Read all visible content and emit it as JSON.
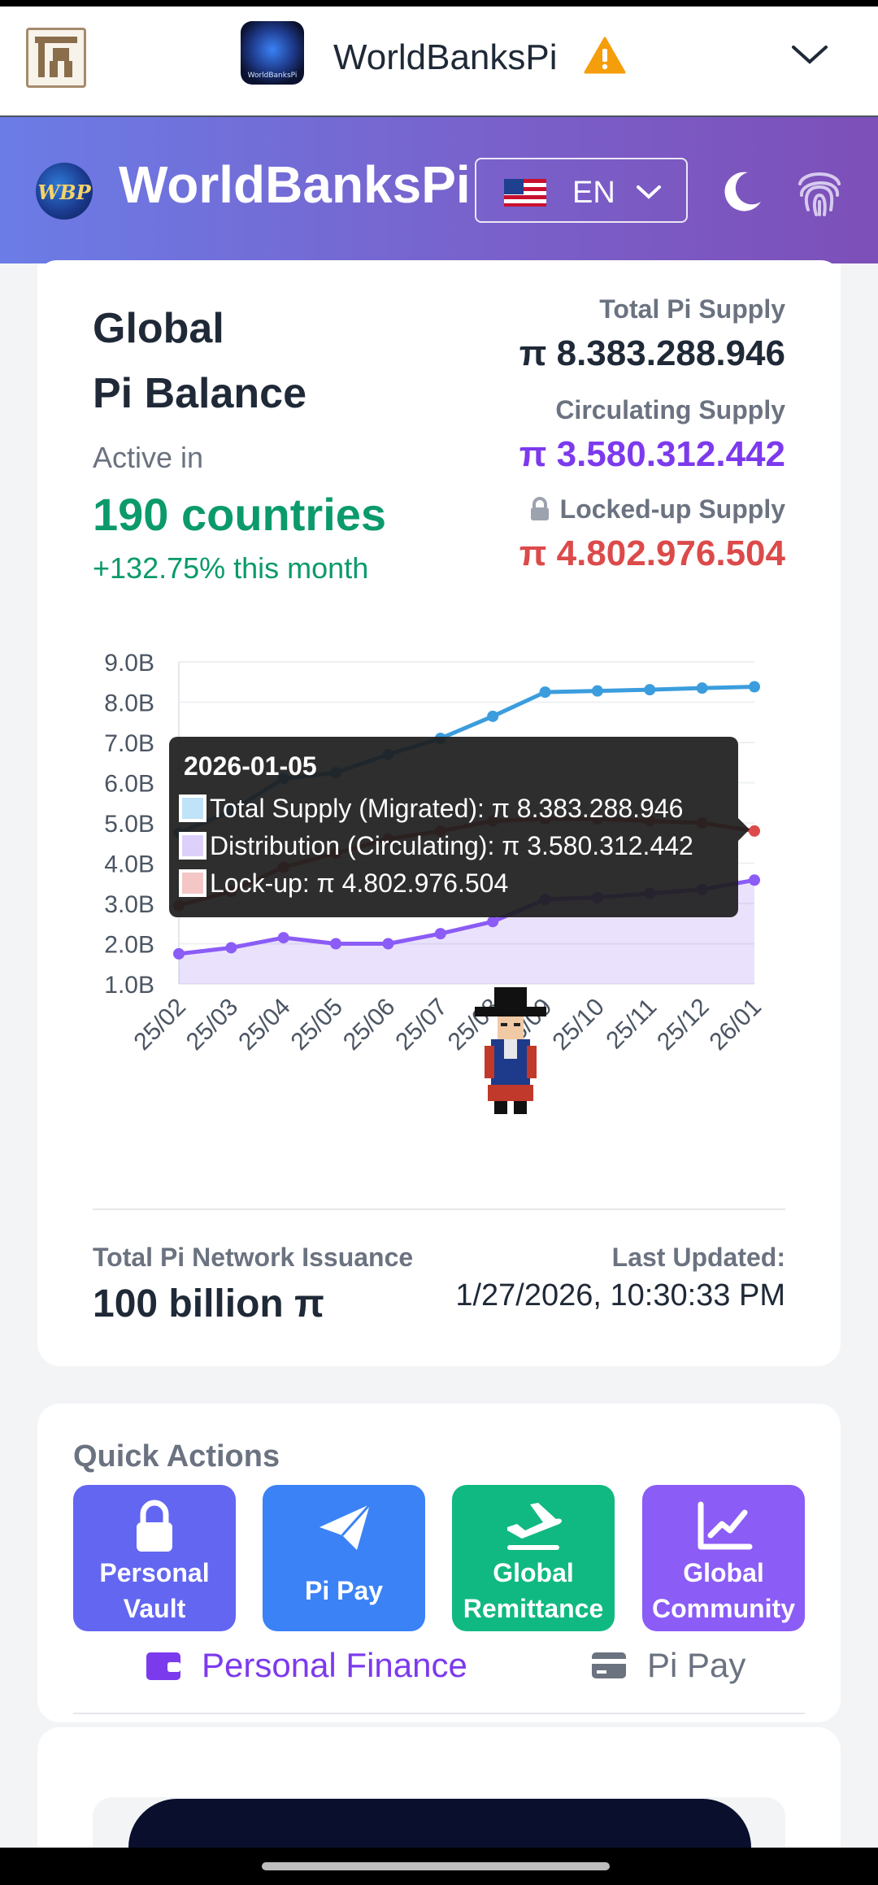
{
  "browser": {
    "title": "WorldBanksPi",
    "app_icon_text": "WorldBanksPi"
  },
  "header": {
    "logo_text": "WBP",
    "title": "WorldBanksPi",
    "language": "EN"
  },
  "balance": {
    "title_line1": "Global",
    "title_line2": "Pi Balance",
    "active_in": "Active in",
    "countries": "190 countries",
    "growth": "+132.75% this month",
    "total_supply_label": "Total Pi Supply",
    "total_supply_value": "π 8.383.288.946",
    "circulating_label": "Circulating Supply",
    "circulating_value": "π 3.580.312.442",
    "locked_label": "Locked-up Supply",
    "locked_value": "π 4.802.976.504"
  },
  "chart_data": {
    "type": "line",
    "categories": [
      "25/02",
      "25/03",
      "25/04",
      "25/05",
      "25/06",
      "25/07",
      "25/08",
      "25/09",
      "25/10",
      "25/11",
      "25/12",
      "26/01"
    ],
    "y_tick_labels": [
      "9.0B",
      "8.0B",
      "7.0B",
      "6.0B",
      "5.0B",
      "4.0B",
      "3.0B",
      "2.0B",
      "1.0B"
    ],
    "ylim": [
      1.0,
      9.0
    ],
    "y_unit": "B",
    "grid": true,
    "series": [
      {
        "name": "Total Supply (Migrated)",
        "color": "#3b9ddd",
        "values": [
          4.75,
          5.3,
          6.1,
          6.25,
          6.7,
          7.1,
          7.65,
          8.25,
          8.28,
          8.31,
          8.35,
          8.383
        ]
      },
      {
        "name": "Distribution (Circulating)",
        "color": "#8b5cf6",
        "values": [
          1.75,
          1.9,
          2.15,
          2.0,
          2.0,
          2.25,
          2.55,
          3.1,
          3.15,
          3.25,
          3.35,
          3.58
        ]
      },
      {
        "name": "Lock-up",
        "color": "#dc4a4a",
        "values": [
          2.95,
          3.3,
          3.9,
          4.25,
          4.6,
          4.8,
          5.05,
          5.1,
          5.1,
          5.05,
          5.0,
          4.8
        ]
      }
    ],
    "tooltip": {
      "date": "2026-01-05",
      "rows": [
        "Total Supply (Migrated): π 8.383.288.946",
        "Distribution (Circulating): π 3.580.312.442",
        "Lock-up: π 4.802.976.504"
      ]
    }
  },
  "footer": {
    "issuance_label": "Total Pi Network Issuance",
    "issuance_value": "100 billion π",
    "updated_label": "Last Updated:",
    "updated_value": "1/27/2026, 10:30:33 PM"
  },
  "quick_actions": {
    "title": "Quick Actions",
    "buttons": [
      {
        "line1": "Personal",
        "line2": "Vault",
        "color": "#6366f1",
        "icon": "lock-icon"
      },
      {
        "line1": "Pi Pay",
        "line2": "",
        "color": "#3b82f6",
        "icon": "paper-plane-icon"
      },
      {
        "line1": "Global",
        "line2": "Remittance",
        "color": "#10b981",
        "icon": "plane-departure-icon"
      },
      {
        "line1": "Global",
        "line2": "Community",
        "color": "#8b5cf6",
        "icon": "chart-line-icon"
      }
    ],
    "tabs": [
      {
        "label": "Personal Finance",
        "icon": "wallet-icon",
        "color": "#7c3aed"
      },
      {
        "label": "Pi Pay",
        "icon": "credit-card-icon",
        "color": "#6b7280"
      }
    ]
  }
}
